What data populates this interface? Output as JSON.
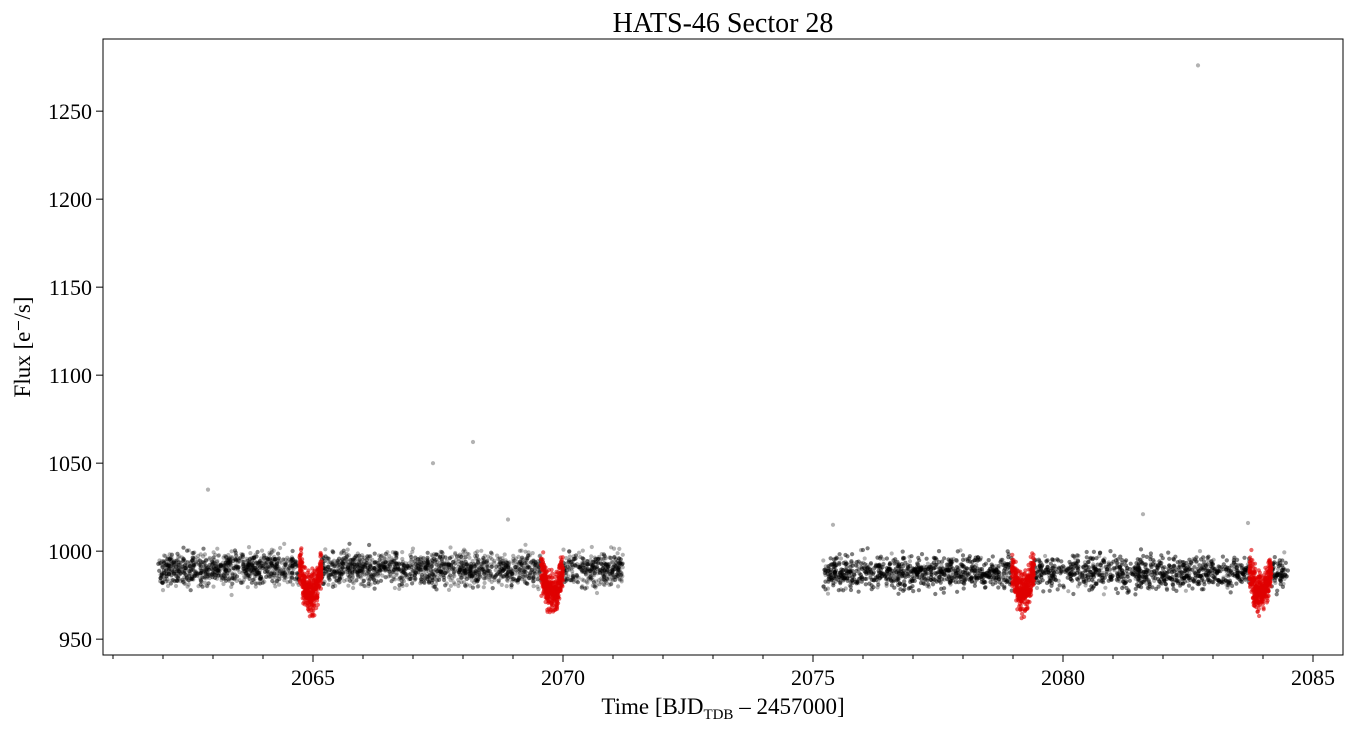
{
  "chart_data": {
    "type": "scatter",
    "title": "HATS-46 Sector 28",
    "xlabel": {
      "prefix": "Time [BJD",
      "subscript": "TDB",
      "suffix": " – 2457000]"
    },
    "ylabel": "Flux [e⁻/s]",
    "xlim": [
      2060.8,
      2085.6
    ],
    "ylim": [
      941,
      1291
    ],
    "xticks": [
      2065,
      2070,
      2075,
      2080,
      2085
    ],
    "yticks": [
      950,
      1000,
      1050,
      1100,
      1150,
      1200,
      1250
    ],
    "grid": false,
    "legend": "none",
    "series": [
      {
        "color": "#000000",
        "opacity": 0.3,
        "segments": [
          {
            "x_range": [
              2061.9,
              2071.2
            ],
            "flux_center": 990,
            "flux_scatter": 8
          },
          {
            "x_range": [
              2075.2,
              2084.5
            ],
            "flux_center": 988,
            "flux_scatter": 8
          }
        ],
        "outliers": [
          {
            "x": 2062.9,
            "y": 1035
          },
          {
            "x": 2067.4,
            "y": 1050
          },
          {
            "x": 2068.2,
            "y": 1062
          },
          {
            "x": 2068.9,
            "y": 1018
          },
          {
            "x": 2075.4,
            "y": 1015
          },
          {
            "x": 2081.6,
            "y": 1021
          },
          {
            "x": 2082.7,
            "y": 1276
          },
          {
            "x": 2083.7,
            "y": 1016
          }
        ]
      },
      {
        "color": "#e00000",
        "opacity": 0.6,
        "transits": [
          {
            "x_center": 2064.95,
            "half_width": 0.22,
            "depth": 12
          },
          {
            "x_center": 2069.78,
            "half_width": 0.22,
            "depth": 12
          },
          {
            "x_center": 2079.2,
            "half_width": 0.22,
            "depth": 12
          },
          {
            "x_center": 2083.95,
            "half_width": 0.22,
            "depth": 12
          }
        ]
      }
    ]
  }
}
